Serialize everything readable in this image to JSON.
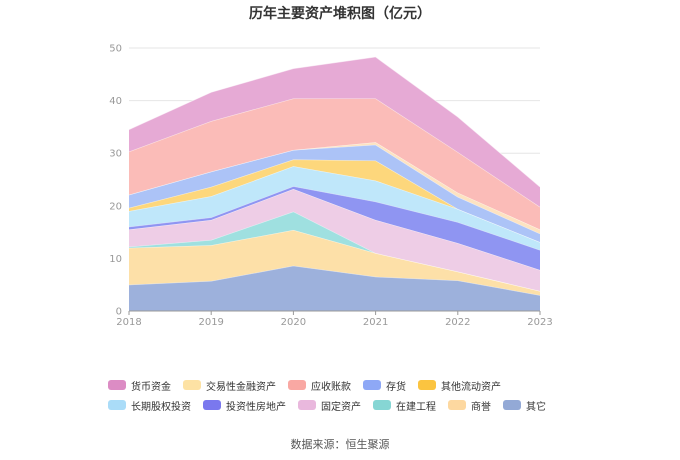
{
  "chart_data": {
    "type": "area",
    "stacked": true,
    "title": "历年主要资产堆积图（亿元）",
    "x": [
      "2018",
      "2019",
      "2020",
      "2021",
      "2022",
      "2023"
    ],
    "ylim": [
      0,
      50
    ],
    "yticks": [
      0,
      10,
      20,
      30,
      40,
      50
    ],
    "xlabel": "",
    "ylabel": "",
    "grid": true,
    "legend_position": "bottom",
    "series": [
      {
        "name": "其它",
        "color": "#9db1dc",
        "values": [
          5.0,
          5.7,
          8.6,
          6.5,
          5.8,
          3.0
        ]
      },
      {
        "name": "商誉",
        "color": "#fde0a8",
        "values": [
          7.0,
          6.8,
          6.8,
          4.5,
          1.7,
          0.8
        ]
      },
      {
        "name": "在建工程",
        "color": "#9fe0e0",
        "values": [
          0.2,
          1.0,
          3.5,
          0.0,
          0.0,
          0.0
        ]
      },
      {
        "name": "固定资产",
        "color": "#eecde6",
        "values": [
          3.3,
          3.8,
          4.3,
          6.3,
          5.4,
          4.0
        ]
      },
      {
        "name": "投资性房地产",
        "color": "#8f95f2",
        "values": [
          0.5,
          0.5,
          0.5,
          3.5,
          4.0,
          3.8
        ]
      },
      {
        "name": "长期股权投资",
        "color": "#bfe7fa",
        "values": [
          3.0,
          4.0,
          3.8,
          4.0,
          2.5,
          1.5
        ]
      },
      {
        "name": "其他流动资产",
        "color": "#fdd77c",
        "values": [
          0.6,
          1.8,
          1.3,
          3.8,
          0.0,
          0.0
        ]
      },
      {
        "name": "存货",
        "color": "#acc3f7",
        "values": [
          2.5,
          2.9,
          1.8,
          3.0,
          2.3,
          1.6
        ]
      },
      {
        "name": "交易性金融资产",
        "color": "#fde3c1",
        "values": [
          0.0,
          0.0,
          0.0,
          0.5,
          0.8,
          0.8
        ]
      },
      {
        "name": "应收账款",
        "color": "#fbbcb8",
        "values": [
          8.2,
          9.6,
          9.8,
          8.3,
          7.7,
          4.3
        ]
      },
      {
        "name": "货币资金",
        "color": "#e6aad5",
        "values": [
          4.2,
          5.5,
          5.7,
          7.9,
          6.7,
          3.8
        ]
      }
    ]
  },
  "legend": [
    {
      "name": "货币资金",
      "color": "#dc8cc4"
    },
    {
      "name": "交易性金融资产",
      "color": "#fde2a4"
    },
    {
      "name": "应收账款",
      "color": "#f9a8a3"
    },
    {
      "name": "存货",
      "color": "#8ea8f6"
    },
    {
      "name": "其他流动资产",
      "color": "#fbc440"
    },
    {
      "name": "长期股权投资",
      "color": "#aadcf8"
    },
    {
      "name": "投资性房地产",
      "color": "#7a78ee"
    },
    {
      "name": "固定资产",
      "color": "#e9b8dd"
    },
    {
      "name": "在建工程",
      "color": "#86d6d4"
    },
    {
      "name": "商誉",
      "color": "#fdd8a0"
    },
    {
      "name": "其它",
      "color": "#93a9d6"
    }
  ],
  "source": "数据来源：恒生聚源"
}
